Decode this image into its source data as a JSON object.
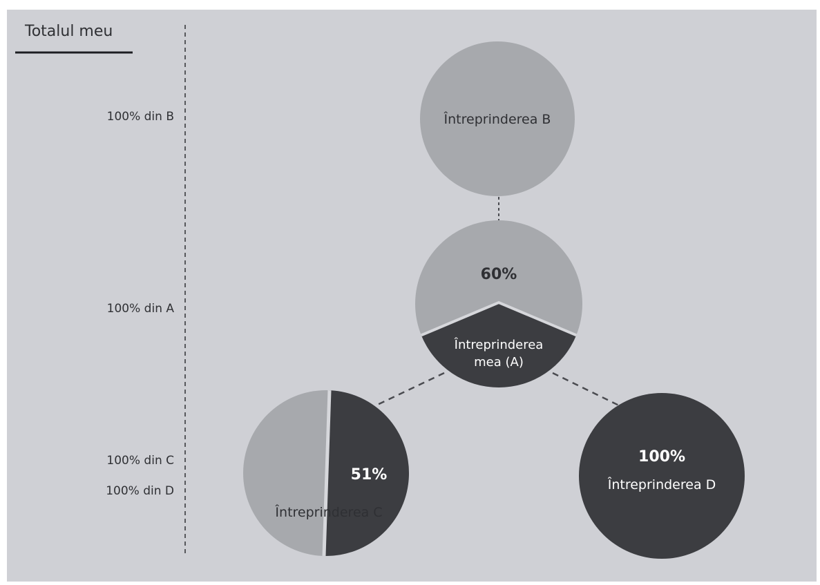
{
  "sidebar": {
    "title": "Totalul meu",
    "rows": [
      "100% din B",
      "100% din A",
      "100% din C",
      "100% din D"
    ]
  },
  "nodes": {
    "b": {
      "label": "Întreprinderea B"
    },
    "a": {
      "percent": "60%",
      "label_line1": "Întreprinderea",
      "label_line2": "mea (A)",
      "share": 0.6
    },
    "c": {
      "percent": "51%",
      "label": "Întreprinderea C",
      "share": 0.51
    },
    "d": {
      "percent": "100%",
      "label": "Întreprinderea D",
      "share": 1.0
    }
  },
  "colors": {
    "background": "#cfd0d5",
    "light_segment": "#a7a9ad",
    "dark_segment": "#3c3d41",
    "divider": "#d6d7db",
    "connector": "#4a4b50",
    "text_dark": "#2f3034",
    "text_light": "#ffffff"
  }
}
